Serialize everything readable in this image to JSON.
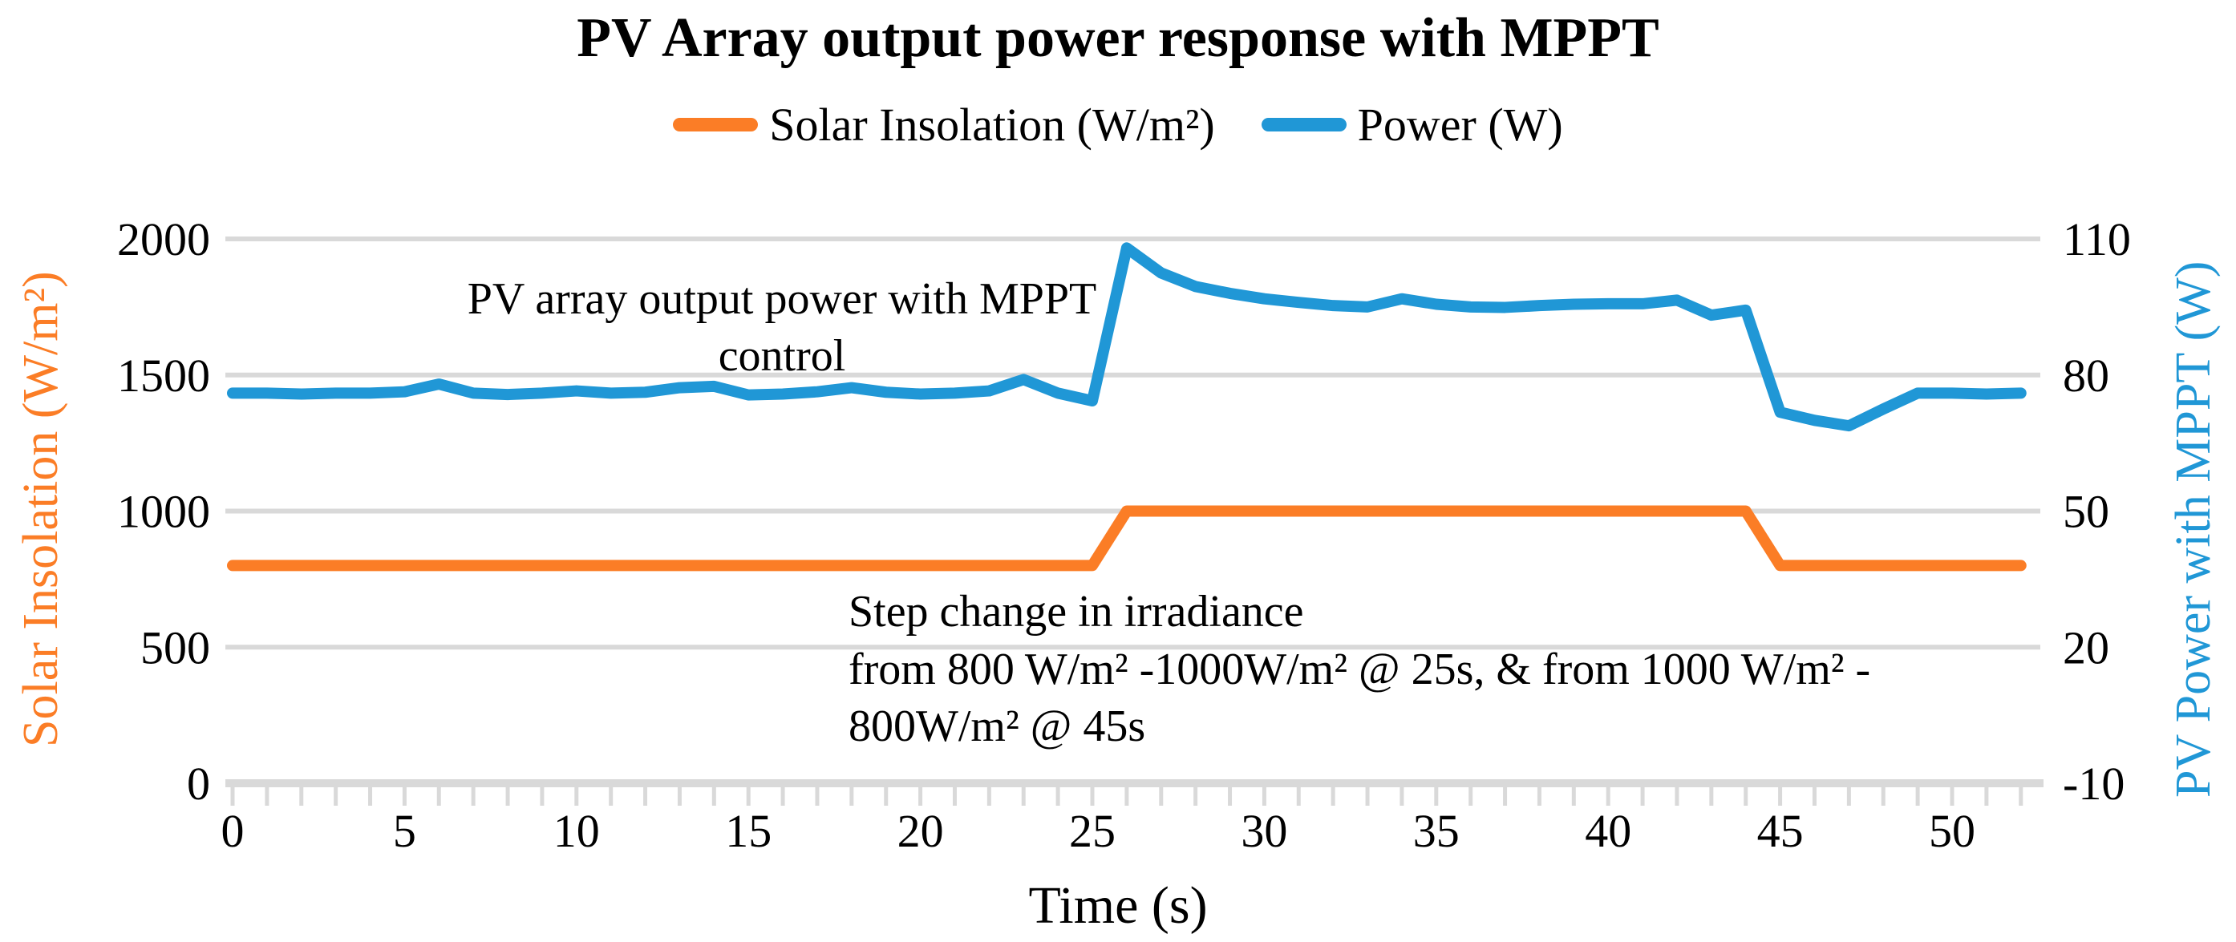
{
  "chart": {
    "title": "PV Array output power response with MPPT",
    "legend": [
      {
        "label": "Solar Insolation (W/m²)",
        "color": "#FB7D26"
      },
      {
        "label": "Power (W)",
        "color": "#2097D6"
      }
    ],
    "x_axis": {
      "title": "Time (s)",
      "tick_labels": [
        0,
        5,
        10,
        15,
        20,
        25,
        30,
        35,
        40,
        45,
        50
      ]
    },
    "y_left_axis": {
      "title": "Solar Insolation (W/m²)",
      "color": "#FB7D26",
      "tick_labels": [
        2000,
        1500,
        1000,
        500,
        0
      ]
    },
    "y_right_axis": {
      "title": "PV Power with MPPT (W)",
      "color": "#2097D6",
      "tick_labels": [
        110,
        80,
        50,
        20,
        -10
      ]
    },
    "annotations": {
      "power": "PV array output power with MPPT\ncontrol",
      "step": "Step change in irradiance\nfrom 800 W/m² -1000W/m² @ 25s, & from 1000 W/m² -\n800W/m² @ 45s"
    },
    "grid_color": "#D9D9D9"
  },
  "chart_data": {
    "type": "line",
    "title": "PV Array output power response with MPPT",
    "xlabel": "Time (s)",
    "x_range": [
      0,
      52
    ],
    "grid": true,
    "legend_position": "top",
    "series": [
      {
        "name": "Solar Insolation (W/m²)",
        "axis": "left",
        "ylabel": "Solar Insolation (W/m²)",
        "ylim": [
          0,
          2000
        ],
        "color": "#FB7D26",
        "points": [
          [
            0,
            800
          ],
          [
            25,
            800
          ],
          [
            26,
            1000
          ],
          [
            44,
            1000
          ],
          [
            45,
            800
          ],
          [
            52,
            800
          ]
        ]
      },
      {
        "name": "Power (W)",
        "axis": "right",
        "ylabel": "PV Power with MPPT (W)",
        "ylim": [
          -10,
          110
        ],
        "color": "#2097D6",
        "points": [
          [
            0,
            76
          ],
          [
            1,
            76
          ],
          [
            2,
            75.8
          ],
          [
            3,
            76
          ],
          [
            4,
            76
          ],
          [
            5,
            76.3
          ],
          [
            6,
            78
          ],
          [
            7,
            76
          ],
          [
            8,
            75.7
          ],
          [
            9,
            76
          ],
          [
            10,
            76.5
          ],
          [
            11,
            76
          ],
          [
            12,
            76.2
          ],
          [
            13,
            77.2
          ],
          [
            14,
            77.5
          ],
          [
            15,
            75.6
          ],
          [
            16,
            75.8
          ],
          [
            17,
            76.3
          ],
          [
            18,
            77.2
          ],
          [
            19,
            76.2
          ],
          [
            20,
            75.8
          ],
          [
            21,
            76
          ],
          [
            22,
            76.5
          ],
          [
            23,
            79
          ],
          [
            24,
            76
          ],
          [
            25,
            74.3
          ],
          [
            26,
            108
          ],
          [
            27,
            102.5
          ],
          [
            28,
            99.5
          ],
          [
            29,
            98
          ],
          [
            30,
            96.8
          ],
          [
            31,
            96
          ],
          [
            32,
            95.3
          ],
          [
            33,
            95
          ],
          [
            34,
            96.8
          ],
          [
            35,
            95.6
          ],
          [
            36,
            95
          ],
          [
            37,
            94.9
          ],
          [
            38,
            95.3
          ],
          [
            39,
            95.6
          ],
          [
            40,
            95.7
          ],
          [
            41,
            95.7
          ],
          [
            42,
            96.5
          ],
          [
            43,
            93.2
          ],
          [
            44,
            94.3
          ],
          [
            45,
            71.8
          ],
          [
            46,
            70
          ],
          [
            47,
            68.8
          ],
          [
            48,
            72.5
          ],
          [
            49,
            76
          ],
          [
            50,
            76
          ],
          [
            51,
            75.8
          ],
          [
            52,
            76
          ]
        ]
      }
    ]
  }
}
